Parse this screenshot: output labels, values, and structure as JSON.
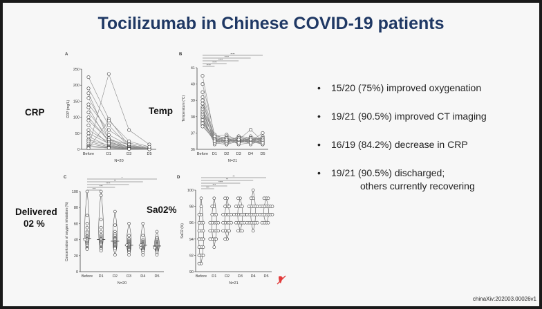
{
  "title": "Tocilizumab in Chinese COVID-19 patients",
  "side_labels": {
    "crp": "CRP",
    "temp": "Temp",
    "delivered": "Delivered",
    "o2": "02 %",
    "sao2": "Sa02%"
  },
  "findings": [
    "15/20 (75%) improved oxygenation",
    "19/21 (90.5%) improved CT imaging",
    "16/19 (84.2%) decrease in CRP",
    "19/21 (90.5%) discharged;"
  ],
  "findings_cont": "others currently recovering",
  "source": "chinaXiv:202003.00026v1",
  "colors": {
    "title": "#1f3864",
    "marker_stroke": "#333333",
    "line": "#888888"
  },
  "chart_data": [
    {
      "panel": "A",
      "type": "line",
      "ylabel": "CRP (mg/L)",
      "xlabel": "N=20",
      "categories": [
        "Before",
        "D1",
        "D3",
        "D5"
      ],
      "ylim": [
        0,
        250
      ],
      "yticks": [
        0,
        50,
        100,
        150,
        200,
        250
      ],
      "series": [
        {
          "values": [
            225,
            95,
            10,
            2
          ]
        },
        {
          "values": [
            190,
            75,
            8,
            1
          ]
        },
        {
          "values": [
            175,
            30,
            5,
            1
          ]
        },
        {
          "values": [
            160,
            45,
            12,
            3
          ]
        },
        {
          "values": [
            140,
            60,
            20,
            5
          ]
        },
        {
          "values": [
            130,
            20,
            4,
            1
          ]
        },
        {
          "values": [
            115,
            35,
            6,
            2
          ]
        },
        {
          "values": [
            100,
            25,
            3,
            1
          ]
        },
        {
          "values": [
            90,
            30,
            15,
            3
          ]
        },
        {
          "values": [
            75,
            15,
            2,
            1
          ]
        },
        {
          "values": [
            60,
            22,
            8,
            2
          ]
        },
        {
          "values": [
            50,
            18,
            4,
            1
          ]
        },
        {
          "values": [
            40,
            10,
            2,
            1
          ]
        },
        {
          "values": [
            30,
            12,
            3,
            1
          ]
        },
        {
          "values": [
            25,
            8,
            2,
            1
          ]
        },
        {
          "values": [
            18,
            6,
            1,
            0
          ]
        },
        {
          "values": [
            12,
            5,
            1,
            0
          ]
        },
        {
          "values": [
            8,
            4,
            1,
            0
          ]
        },
        {
          "values": [
            5,
            235,
            60,
            15
          ]
        },
        {
          "values": [
            3,
            90,
            25,
            8
          ]
        }
      ]
    },
    {
      "panel": "B",
      "type": "line",
      "ylabel": "Temperature (°C)",
      "xlabel": "N=21",
      "categories": [
        "Before",
        "D1",
        "D2",
        "D3",
        "D4",
        "D5"
      ],
      "ylim": [
        36,
        41
      ],
      "yticks": [
        36,
        37,
        38,
        39,
        40,
        41
      ],
      "series": [
        {
          "values": [
            40.5,
            36.8,
            36.5,
            36.6,
            36.4,
            36.5
          ]
        },
        {
          "values": [
            40.0,
            36.9,
            36.6,
            36.5,
            36.6,
            36.4
          ]
        },
        {
          "values": [
            39.5,
            36.7,
            36.4,
            36.8,
            36.7,
            36.6
          ]
        },
        {
          "values": [
            39.2,
            36.6,
            36.7,
            36.4,
            36.5,
            36.7
          ]
        },
        {
          "values": [
            39.0,
            36.5,
            36.5,
            36.6,
            37.2,
            36.5
          ]
        },
        {
          "values": [
            38.8,
            36.8,
            36.9,
            36.5,
            36.4,
            36.8
          ]
        },
        {
          "values": [
            38.6,
            36.4,
            36.3,
            36.7,
            36.6,
            36.3
          ]
        },
        {
          "values": [
            38.5,
            36.9,
            36.6,
            36.5,
            36.8,
            36.6
          ]
        },
        {
          "values": [
            38.4,
            36.5,
            36.8,
            36.6,
            36.5,
            37.0
          ]
        },
        {
          "values": [
            38.3,
            36.6,
            36.5,
            36.4,
            36.7,
            36.5
          ]
        },
        {
          "values": [
            38.2,
            36.7,
            36.4,
            36.8,
            36.5,
            36.4
          ]
        },
        {
          "values": [
            38.1,
            36.3,
            36.6,
            36.5,
            36.6,
            36.6
          ]
        },
        {
          "values": [
            38.0,
            36.8,
            36.7,
            36.3,
            36.4,
            36.5
          ]
        },
        {
          "values": [
            37.9,
            36.5,
            36.5,
            36.6,
            36.6,
            36.7
          ]
        },
        {
          "values": [
            37.8,
            36.6,
            36.3,
            36.5,
            36.5,
            36.4
          ]
        },
        {
          "values": [
            37.7,
            36.4,
            36.6,
            36.7,
            36.3,
            36.6
          ]
        },
        {
          "values": [
            37.6,
            36.7,
            36.5,
            36.4,
            36.6,
            36.5
          ]
        },
        {
          "values": [
            37.5,
            36.5,
            36.4,
            36.6,
            36.5,
            36.3
          ]
        },
        {
          "values": [
            37.4,
            36.6,
            36.7,
            36.5,
            36.7,
            36.6
          ]
        },
        {
          "values": [
            37.6,
            36.8,
            36.5,
            36.6,
            36.4,
            36.5
          ]
        },
        {
          "values": [
            37.8,
            36.5,
            36.6,
            36.4,
            36.6,
            36.4
          ]
        }
      ],
      "significance": [
        "****",
        "****",
        "****",
        "****",
        "****"
      ]
    },
    {
      "panel": "C",
      "type": "scatter",
      "ylabel": "Concentration of oxygen inhalation (%)",
      "xlabel": "N=20",
      "categories": [
        "Before",
        "D1",
        "D2",
        "D3",
        "D4",
        "D5"
      ],
      "ylim": [
        0,
        100
      ],
      "yticks": [
        0,
        20,
        40,
        60,
        80,
        100
      ],
      "groups": [
        {
          "values": [
            100,
            70,
            60,
            55,
            50,
            48,
            45,
            44,
            42,
            41,
            40,
            40,
            38,
            36,
            35,
            33,
            32,
            30,
            29,
            28
          ]
        },
        {
          "values": [
            100,
            95,
            65,
            55,
            50,
            46,
            44,
            42,
            41,
            40,
            38,
            37,
            36,
            35,
            33,
            31,
            30,
            29,
            28,
            26
          ]
        },
        {
          "values": [
            75,
            58,
            50,
            47,
            45,
            43,
            42,
            41,
            40,
            38,
            37,
            36,
            35,
            34,
            33,
            32,
            31,
            30,
            29,
            21
          ]
        },
        {
          "values": [
            60,
            45,
            41,
            39,
            38,
            37,
            36,
            35,
            34,
            33,
            33,
            32,
            31,
            30,
            29,
            28,
            27,
            25,
            24,
            21
          ]
        },
        {
          "values": [
            60,
            45,
            40,
            38,
            37,
            36,
            35,
            34,
            33,
            33,
            32,
            31,
            30,
            30,
            29,
            28,
            27,
            26,
            24,
            21
          ]
        },
        {
          "values": [
            50,
            42,
            40,
            38,
            37,
            36,
            35,
            34,
            33,
            32,
            31,
            30,
            30,
            29,
            28,
            27,
            26,
            25,
            23,
            21
          ]
        }
      ],
      "significance": [
        "*",
        "**",
        "****",
        "***",
        "***"
      ]
    },
    {
      "panel": "D",
      "type": "scatter",
      "ylabel": "SaO2 (%)",
      "xlabel": "N=21",
      "categories": [
        "Before",
        "D1",
        "D2",
        "D3",
        "D4",
        "D5"
      ],
      "ylim": [
        90,
        100
      ],
      "yticks": [
        90,
        92,
        94,
        96,
        98,
        100
      ],
      "groups": [
        {
          "values": [
            99,
            98,
            97,
            97,
            96,
            96,
            96,
            95,
            95,
            95,
            94,
            94,
            94,
            93,
            93,
            93,
            92,
            92,
            91,
            91,
            92
          ]
        },
        {
          "values": [
            99,
            98,
            98,
            97,
            97,
            97,
            96,
            96,
            96,
            96,
            95,
            95,
            95,
            95,
            94,
            94,
            94,
            94,
            93,
            95,
            96
          ]
        },
        {
          "values": [
            99,
            99,
            98,
            98,
            98,
            97,
            97,
            97,
            97,
            96,
            96,
            96,
            96,
            95,
            95,
            95,
            95,
            94,
            94,
            96,
            97
          ]
        },
        {
          "values": [
            99,
            99,
            98,
            98,
            98,
            98,
            97,
            97,
            97,
            97,
            97,
            96,
            96,
            96,
            96,
            96,
            95,
            95,
            95,
            97,
            97
          ]
        },
        {
          "values": [
            100,
            99,
            99,
            98,
            98,
            98,
            98,
            97,
            97,
            97,
            97,
            97,
            96,
            96,
            96,
            96,
            96,
            95,
            96,
            97,
            98
          ]
        },
        {
          "values": [
            99,
            99,
            99,
            98,
            98,
            98,
            98,
            98,
            97,
            97,
            97,
            97,
            97,
            97,
            96,
            96,
            96,
            96,
            97,
            98,
            98
          ]
        }
      ],
      "significance": [
        "**",
        "**",
        "****",
        "***",
        "***"
      ]
    }
  ]
}
